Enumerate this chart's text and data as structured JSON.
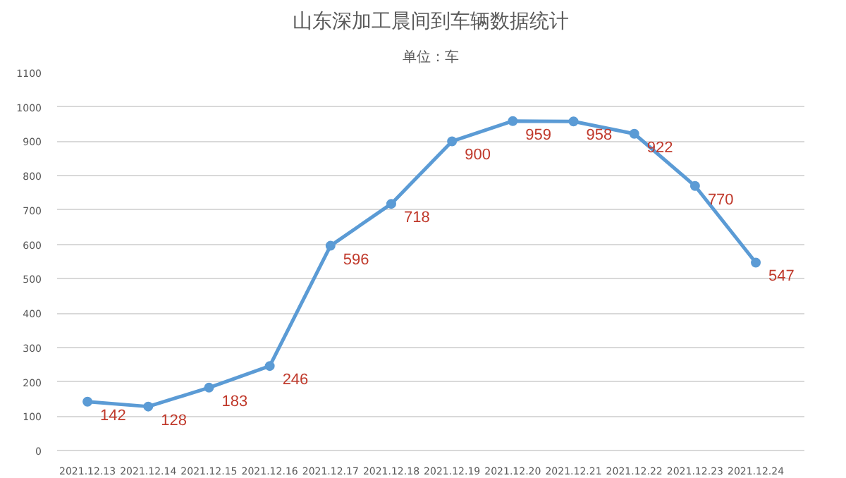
{
  "chart_data": {
    "type": "line",
    "title": "山东深加工晨间到车辆数据统计",
    "subtitle": "单位：车",
    "categories": [
      "2021.12.13",
      "2021.12.14",
      "2021.12.15",
      "2021.12.16",
      "2021.12.17",
      "2021.12.18",
      "2021.12.19",
      "2021.12.20",
      "2021.12.21",
      "2021.12.22",
      "2021.12.23",
      "2021.12.24"
    ],
    "series": [
      {
        "color": "#5b9bd5",
        "values": [
          142,
          128,
          183,
          246,
          596,
          718,
          900,
          959,
          958,
          922,
          770,
          547
        ]
      }
    ],
    "ylim": [
      0,
      1100
    ],
    "yticks": [
      0,
      100,
      200,
      300,
      400,
      500,
      600,
      700,
      800,
      900,
      1000,
      1100
    ],
    "grid": "y",
    "marker": "circle",
    "line_style": "solid",
    "data_labels": true
  }
}
